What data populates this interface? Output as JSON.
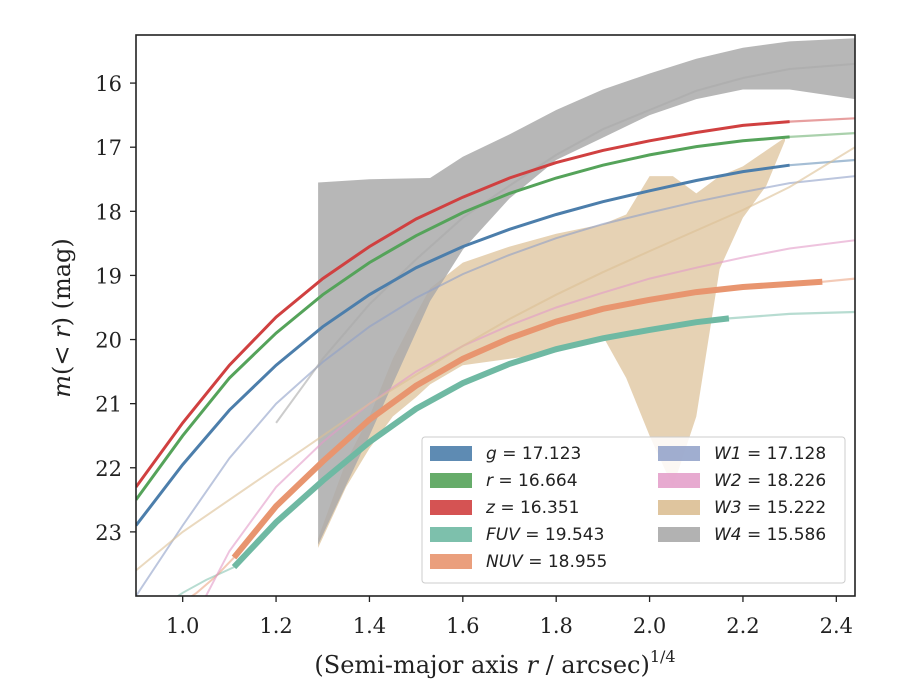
{
  "chart_data": {
    "type": "line",
    "title": "",
    "xlabel": "(Semi-major axis r / arcsec)",
    "xlabel_parts": {
      "prefix": "(Semi-major axis ",
      "var": "r",
      "suffix": " / arcsec)",
      "exponent": "1/4"
    },
    "ylabel_parts": {
      "m": "m",
      "lt": "(< ",
      "r": "r",
      "close": ")",
      "unit": " (mag)"
    },
    "xlim": [
      0.9,
      2.44
    ],
    "ylim": [
      24.0,
      15.25
    ],
    "y_inverted": true,
    "x_ticks": [
      1.0,
      1.2,
      1.4,
      1.6,
      1.8,
      2.0,
      2.2,
      2.4
    ],
    "x_tick_labels": [
      "1.0",
      "1.2",
      "1.4",
      "1.6",
      "1.8",
      "2.0",
      "2.2",
      "2.4"
    ],
    "y_ticks": [
      16,
      17,
      18,
      19,
      20,
      21,
      22,
      23
    ],
    "y_tick_labels": [
      "16",
      "17",
      "18",
      "19",
      "20",
      "21",
      "22",
      "23"
    ],
    "legend_position": "lower-right",
    "curves": [
      {
        "band": "g",
        "total": "17.123",
        "label_sym": "g",
        "label_val": " = 17.123",
        "color": "#4c7eab",
        "x": [
          0.9,
          1.0,
          1.1,
          1.2,
          1.3,
          1.4,
          1.5,
          1.6,
          1.7,
          1.8,
          1.9,
          2.0,
          2.1,
          2.2,
          2.3,
          2.44
        ],
        "y": [
          22.9,
          21.95,
          21.1,
          20.4,
          19.8,
          19.3,
          18.88,
          18.55,
          18.28,
          18.05,
          17.85,
          17.68,
          17.52,
          17.38,
          17.28,
          17.2
        ],
        "solid_range": [
          0.9,
          2.3
        ]
      },
      {
        "band": "r",
        "total": "16.664",
        "label_sym": "r",
        "label_val": " = 16.664",
        "color": "#55a35a",
        "x": [
          0.9,
          1.0,
          1.1,
          1.2,
          1.3,
          1.4,
          1.5,
          1.6,
          1.7,
          1.8,
          1.9,
          2.0,
          2.1,
          2.2,
          2.3,
          2.44
        ],
        "y": [
          22.5,
          21.5,
          20.6,
          19.9,
          19.3,
          18.8,
          18.38,
          18.02,
          17.72,
          17.48,
          17.28,
          17.12,
          16.99,
          16.9,
          16.84,
          16.78
        ],
        "solid_range": [
          0.9,
          2.3
        ]
      },
      {
        "band": "z",
        "total": "16.351",
        "label_sym": "z",
        "label_val": " = 16.351",
        "color": "#d04040",
        "x": [
          0.9,
          1.0,
          1.1,
          1.2,
          1.3,
          1.4,
          1.5,
          1.6,
          1.7,
          1.8,
          1.9,
          2.0,
          2.1,
          2.2,
          2.3,
          2.44
        ],
        "y": [
          22.3,
          21.3,
          20.4,
          19.65,
          19.05,
          18.55,
          18.12,
          17.78,
          17.48,
          17.24,
          17.05,
          16.9,
          16.77,
          16.66,
          16.6,
          16.55
        ],
        "solid_range": [
          0.9,
          2.3
        ]
      },
      {
        "band": "FUV",
        "total": "19.543",
        "label_sym": "FUV",
        "label_val": " = 19.543",
        "color": "#6fb9a3",
        "x": [
          1.11,
          1.2,
          1.3,
          1.4,
          1.5,
          1.6,
          1.7,
          1.8,
          1.9,
          2.0,
          2.1,
          2.17,
          2.3,
          2.44
        ],
        "y": [
          23.55,
          22.85,
          22.2,
          21.6,
          21.08,
          20.68,
          20.38,
          20.15,
          19.98,
          19.85,
          19.73,
          19.67,
          19.6,
          19.57
        ],
        "solid_range": [
          1.11,
          2.17
        ],
        "thick": true,
        "faint_start": 0.95,
        "faint_x": [
          0.95,
          1.0,
          1.05,
          1.11
        ],
        "faint_y": [
          24.2,
          23.95,
          23.75,
          23.55
        ]
      },
      {
        "band": "NUV",
        "total": "18.955",
        "label_sym": "NUV",
        "label_val": " = 18.955",
        "color": "#e8956f",
        "x": [
          1.11,
          1.2,
          1.3,
          1.4,
          1.5,
          1.6,
          1.7,
          1.8,
          1.9,
          2.0,
          2.1,
          2.2,
          2.37,
          2.44
        ],
        "y": [
          23.4,
          22.6,
          21.9,
          21.25,
          20.72,
          20.3,
          19.98,
          19.72,
          19.52,
          19.38,
          19.26,
          19.18,
          19.1,
          19.05
        ],
        "solid_range": [
          1.11,
          2.37
        ],
        "thick": true,
        "faint_x": [
          0.98,
          1.03,
          1.07,
          1.11
        ],
        "faint_y": [
          24.2,
          23.95,
          23.7,
          23.4
        ]
      },
      {
        "band": "W1",
        "total": "17.128",
        "label_sym": "W1",
        "label_val": " = 17.128",
        "color": "#8fa0c8",
        "x": [
          0.9,
          1.0,
          1.1,
          1.2,
          1.3,
          1.4,
          1.5,
          1.6,
          1.7,
          1.8,
          1.9,
          2.0,
          2.1,
          2.2,
          2.3,
          2.44
        ],
        "y": [
          24.0,
          22.9,
          21.85,
          21.0,
          20.35,
          19.8,
          19.35,
          18.98,
          18.68,
          18.42,
          18.2,
          18.02,
          17.85,
          17.7,
          17.56,
          17.45
        ],
        "faint": true
      },
      {
        "band": "W2",
        "total": "18.226",
        "label_sym": "W2",
        "label_val": " = 18.226",
        "color": "#e39bc8",
        "x": [
          1.05,
          1.1,
          1.2,
          1.3,
          1.4,
          1.5,
          1.6,
          1.7,
          1.8,
          1.9,
          2.0,
          2.1,
          2.2,
          2.3,
          2.44
        ],
        "y": [
          24.0,
          23.3,
          22.3,
          21.6,
          21.0,
          20.5,
          20.1,
          19.78,
          19.5,
          19.27,
          19.05,
          18.88,
          18.72,
          18.58,
          18.45
        ],
        "faint": true
      },
      {
        "band": "W3",
        "total": "15.222",
        "label_sym": "W3",
        "label_val": " = 15.222",
        "color": "#dcbf94",
        "x": [
          0.9,
          1.0,
          1.1,
          1.2,
          1.3,
          1.4,
          1.5,
          1.6,
          1.7,
          1.8,
          1.9,
          2.0,
          2.1,
          2.2,
          2.3,
          2.44
        ],
        "y": [
          23.6,
          23.0,
          22.5,
          22.0,
          21.5,
          21.0,
          20.55,
          20.1,
          19.68,
          19.3,
          18.95,
          18.62,
          18.3,
          17.98,
          17.62,
          17.0
        ],
        "faint": true,
        "band_x": [
          1.29,
          1.35,
          1.4,
          1.45,
          1.5,
          1.53,
          1.6,
          1.7,
          1.8,
          1.9,
          1.95,
          2.0,
          2.05,
          2.1,
          2.15,
          2.2,
          2.25,
          2.29
        ],
        "band_upper": [
          23.1,
          21.9,
          21.2,
          20.3,
          19.6,
          19.2,
          18.8,
          18.55,
          18.35,
          18.2,
          18.05,
          17.45,
          17.45,
          17.72,
          17.45,
          17.3,
          17.05,
          16.85
        ],
        "band_lower": [
          23.25,
          22.3,
          21.7,
          21.2,
          20.9,
          20.7,
          20.4,
          20.3,
          20.2,
          19.95,
          20.6,
          21.5,
          22.3,
          21.2,
          18.9,
          18.1,
          17.6,
          16.9
        ]
      },
      {
        "band": "W4",
        "total": "15.586",
        "label_sym": "W4",
        "label_val": " = 15.586",
        "color": "#aaaaaa",
        "x": [
          1.2,
          1.3,
          1.4,
          1.5,
          1.6,
          1.7,
          1.8,
          1.9,
          2.0,
          2.1,
          2.2,
          2.3,
          2.44
        ],
        "y": [
          21.3,
          20.3,
          19.45,
          18.75,
          18.1,
          17.6,
          17.12,
          16.72,
          16.42,
          16.12,
          15.92,
          15.78,
          15.7
        ],
        "faint": true,
        "band_x": [
          1.29,
          1.4,
          1.53,
          1.6,
          1.7,
          1.8,
          1.9,
          2.0,
          2.1,
          2.2,
          2.3,
          2.44
        ],
        "band_upper": [
          17.55,
          17.5,
          17.48,
          17.15,
          16.8,
          16.42,
          16.1,
          15.85,
          15.62,
          15.45,
          15.35,
          15.3
        ],
        "band_lower": [
          23.2,
          21.5,
          19.4,
          18.6,
          17.8,
          17.2,
          16.85,
          16.5,
          16.25,
          16.1,
          16.1,
          16.25
        ]
      }
    ]
  }
}
